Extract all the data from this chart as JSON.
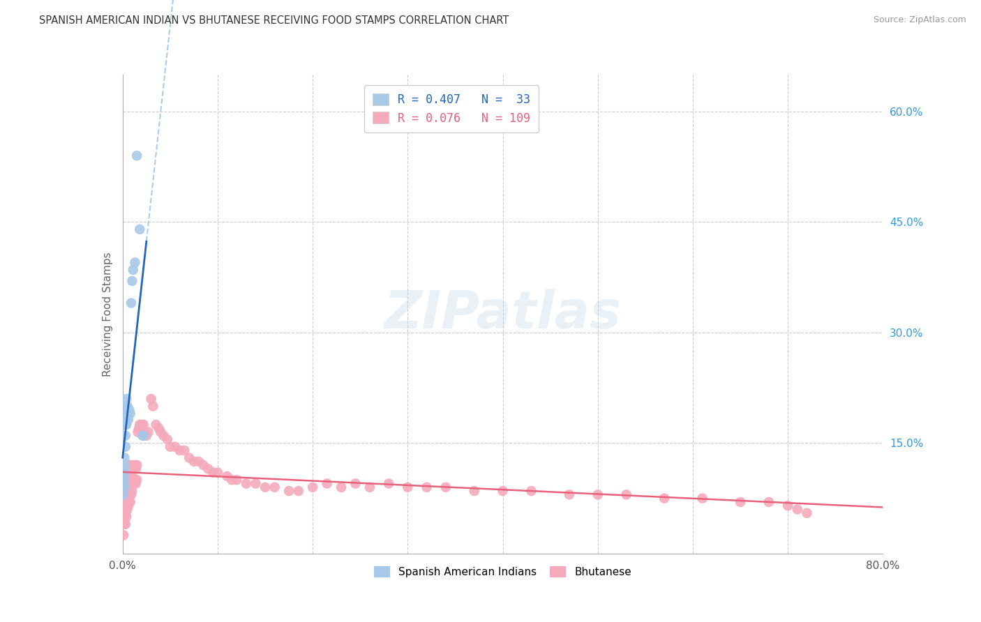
{
  "title": "SPANISH AMERICAN INDIAN VS BHUTANESE RECEIVING FOOD STAMPS CORRELATION CHART",
  "source": "Source: ZipAtlas.com",
  "ylabel": "Receiving Food Stamps",
  "xlim": [
    0.0,
    0.8
  ],
  "ylim": [
    -0.02,
    0.65
  ],
  "R_blue": 0.407,
  "N_blue": 33,
  "R_pink": 0.076,
  "N_pink": 109,
  "blue_color": "#a8c8e8",
  "blue_line_color": "#2266bb",
  "pink_color": "#f4aabb",
  "pink_line_color": "#e8607a",
  "watermark": "ZIPatlas",
  "blue_x": [
    0.001,
    0.001,
    0.001,
    0.001,
    0.002,
    0.002,
    0.002,
    0.002,
    0.002,
    0.003,
    0.003,
    0.003,
    0.003,
    0.003,
    0.004,
    0.004,
    0.004,
    0.004,
    0.005,
    0.005,
    0.005,
    0.006,
    0.006,
    0.007,
    0.008,
    0.009,
    0.01,
    0.011,
    0.013,
    0.015,
    0.018,
    0.021,
    0.022
  ],
  "blue_y": [
    0.115,
    0.105,
    0.095,
    0.08,
    0.13,
    0.12,
    0.11,
    0.1,
    0.09,
    0.2,
    0.185,
    0.175,
    0.16,
    0.145,
    0.21,
    0.2,
    0.19,
    0.175,
    0.2,
    0.195,
    0.185,
    0.195,
    0.182,
    0.195,
    0.19,
    0.34,
    0.37,
    0.385,
    0.395,
    0.54,
    0.44,
    0.16,
    0.16
  ],
  "pink_x": [
    0.001,
    0.001,
    0.001,
    0.002,
    0.002,
    0.002,
    0.002,
    0.003,
    0.003,
    0.003,
    0.003,
    0.003,
    0.003,
    0.004,
    0.004,
    0.004,
    0.004,
    0.004,
    0.005,
    0.005,
    0.005,
    0.005,
    0.006,
    0.006,
    0.006,
    0.006,
    0.007,
    0.007,
    0.007,
    0.007,
    0.008,
    0.008,
    0.008,
    0.008,
    0.009,
    0.009,
    0.009,
    0.01,
    0.01,
    0.01,
    0.011,
    0.011,
    0.012,
    0.012,
    0.013,
    0.013,
    0.014,
    0.014,
    0.015,
    0.015,
    0.016,
    0.017,
    0.018,
    0.019,
    0.02,
    0.021,
    0.022,
    0.023,
    0.025,
    0.027,
    0.03,
    0.032,
    0.035,
    0.038,
    0.04,
    0.043,
    0.047,
    0.05,
    0.055,
    0.06,
    0.065,
    0.07,
    0.075,
    0.08,
    0.085,
    0.09,
    0.095,
    0.1,
    0.11,
    0.115,
    0.12,
    0.13,
    0.14,
    0.15,
    0.16,
    0.175,
    0.185,
    0.2,
    0.215,
    0.23,
    0.245,
    0.26,
    0.28,
    0.3,
    0.32,
    0.34,
    0.37,
    0.4,
    0.43,
    0.47,
    0.5,
    0.53,
    0.57,
    0.61,
    0.65,
    0.68,
    0.7,
    0.71,
    0.72
  ],
  "pink_y": [
    0.05,
    0.04,
    0.025,
    0.08,
    0.065,
    0.055,
    0.04,
    0.11,
    0.095,
    0.08,
    0.065,
    0.055,
    0.04,
    0.105,
    0.095,
    0.08,
    0.065,
    0.05,
    0.105,
    0.09,
    0.075,
    0.06,
    0.115,
    0.1,
    0.085,
    0.065,
    0.12,
    0.105,
    0.09,
    0.07,
    0.12,
    0.105,
    0.09,
    0.07,
    0.115,
    0.1,
    0.08,
    0.12,
    0.105,
    0.085,
    0.115,
    0.095,
    0.12,
    0.1,
    0.12,
    0.1,
    0.115,
    0.095,
    0.12,
    0.1,
    0.165,
    0.17,
    0.175,
    0.17,
    0.175,
    0.17,
    0.175,
    0.165,
    0.16,
    0.165,
    0.21,
    0.2,
    0.175,
    0.17,
    0.165,
    0.16,
    0.155,
    0.145,
    0.145,
    0.14,
    0.14,
    0.13,
    0.125,
    0.125,
    0.12,
    0.115,
    0.11,
    0.11,
    0.105,
    0.1,
    0.1,
    0.095,
    0.095,
    0.09,
    0.09,
    0.085,
    0.085,
    0.09,
    0.095,
    0.09,
    0.095,
    0.09,
    0.095,
    0.09,
    0.09,
    0.09,
    0.085,
    0.085,
    0.085,
    0.08,
    0.08,
    0.08,
    0.075,
    0.075,
    0.07,
    0.07,
    0.065,
    0.06,
    0.055
  ]
}
